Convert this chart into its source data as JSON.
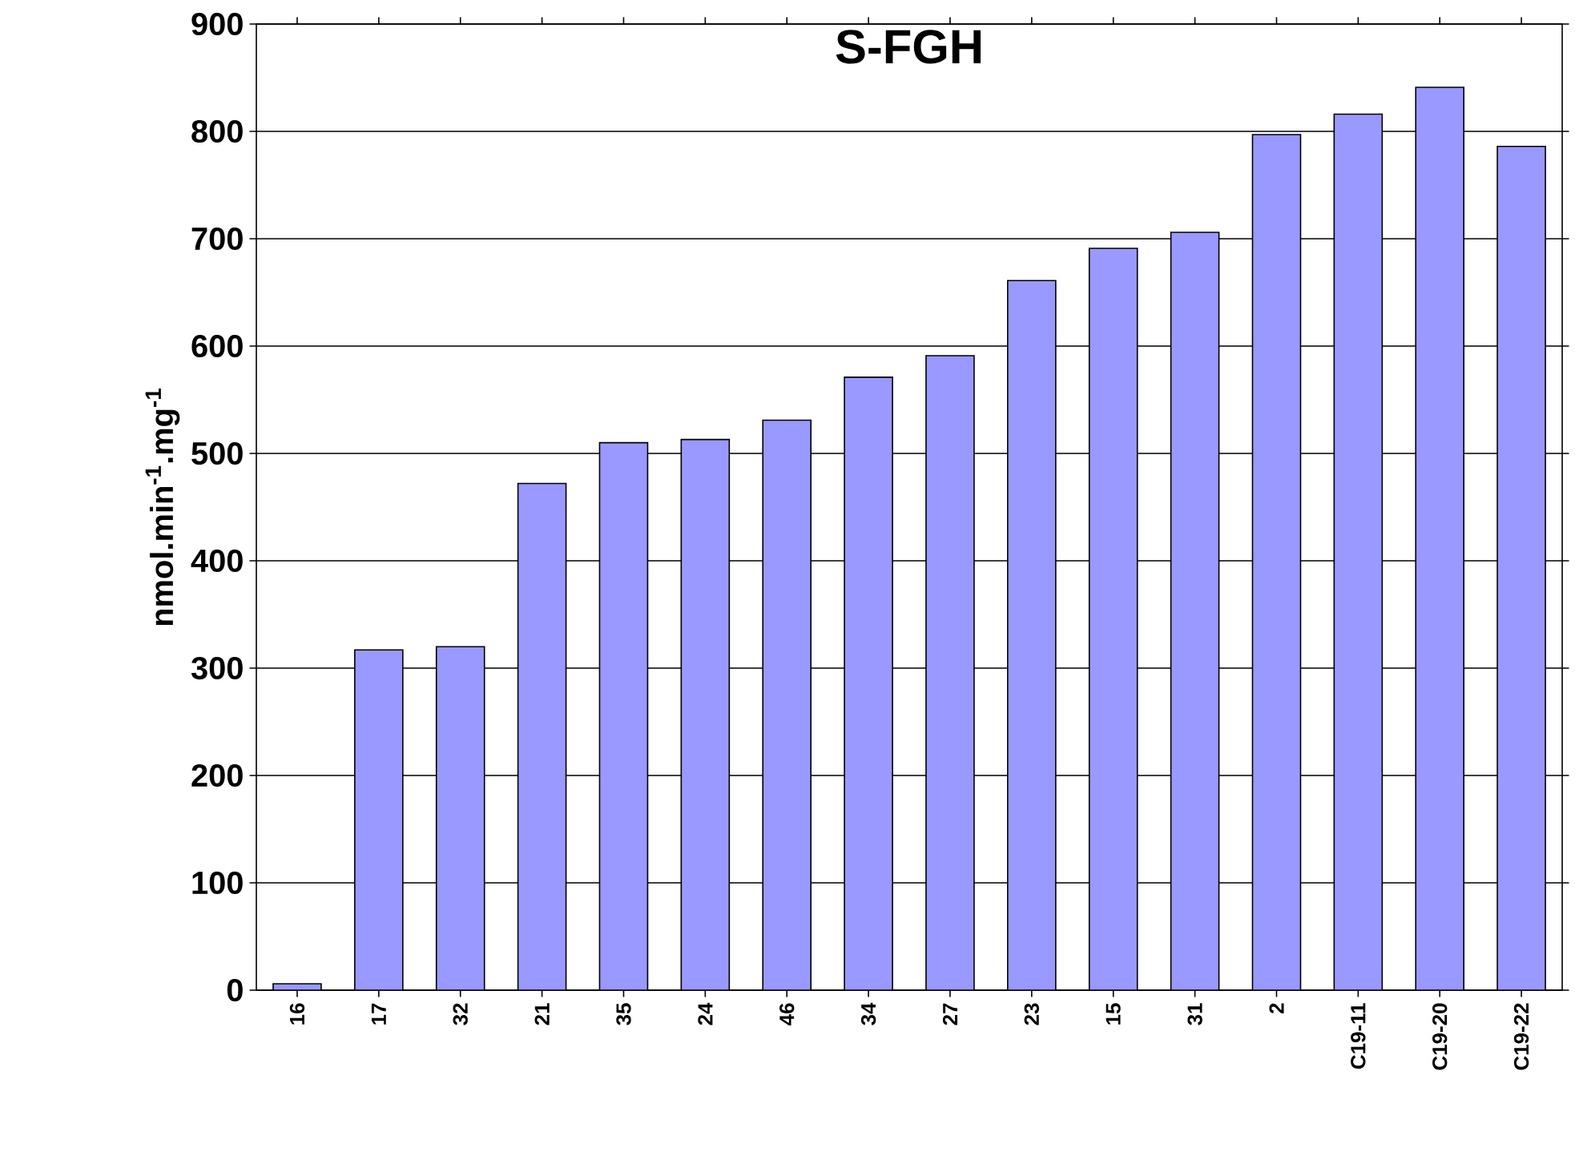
{
  "chart_data": {
    "type": "bar",
    "title": "S-FGH",
    "ylabel": "nmol.min$^{-1}$.mg$^{-1}$",
    "categories": [
      "16",
      "17",
      "32",
      "21",
      "35",
      "24",
      "46",
      "34",
      "27",
      "23",
      "15",
      "31",
      "2",
      "C19-11",
      "C19-20",
      "C19-22"
    ],
    "values": [
      6,
      317,
      320,
      472,
      510,
      513,
      531,
      571,
      591,
      661,
      691,
      706,
      797,
      816,
      841,
      786
    ],
    "color": "#9999ff",
    "ylim": [
      0,
      900
    ],
    "yticks": [
      0,
      100,
      200,
      300,
      400,
      500,
      600,
      700,
      800,
      900
    ],
    "grid": "y"
  }
}
